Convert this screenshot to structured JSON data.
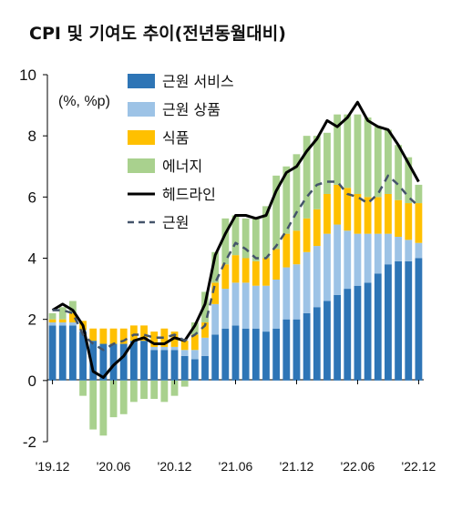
{
  "chart_data": {
    "type": "bar",
    "title": "CPI 및 기여도 추이(전년동월대비)",
    "unit_label": "(%, %p)",
    "ylim": [
      -2,
      10
    ],
    "yticks": [
      -2,
      0,
      2,
      4,
      6,
      8,
      10
    ],
    "x_tick_labels": [
      "'19.12",
      "'20.06",
      "'20.12",
      "'21.06",
      "'21.12",
      "'22.06",
      "'22.12"
    ],
    "legend_position": "top-center",
    "colors": {
      "services": "#2e75b6",
      "goods": "#9dc3e6",
      "food": "#ffc000",
      "energy": "#a9d18e",
      "headline": "#000000",
      "core": "#44546a"
    },
    "categories": [
      "2019-12",
      "2020-01",
      "2020-02",
      "2020-03",
      "2020-04",
      "2020-05",
      "2020-06",
      "2020-07",
      "2020-08",
      "2020-09",
      "2020-10",
      "2020-11",
      "2020-12",
      "2021-01",
      "2021-02",
      "2021-03",
      "2021-04",
      "2021-05",
      "2021-06",
      "2021-07",
      "2021-08",
      "2021-09",
      "2021-10",
      "2021-11",
      "2021-12",
      "2022-01",
      "2022-02",
      "2022-03",
      "2022-04",
      "2022-05",
      "2022-06",
      "2022-07",
      "2022-08",
      "2022-09",
      "2022-10",
      "2022-11",
      "2022-12"
    ],
    "series": [
      {
        "name": "근원 서비스",
        "kind": "bar",
        "values": [
          1.8,
          1.8,
          1.8,
          1.6,
          1.3,
          1.2,
          1.2,
          1.2,
          1.3,
          1.3,
          1.0,
          1.0,
          1.0,
          0.8,
          0.7,
          0.8,
          1.5,
          1.7,
          1.8,
          1.7,
          1.7,
          1.6,
          1.7,
          2.0,
          2.0,
          2.2,
          2.4,
          2.6,
          2.8,
          3.0,
          3.1,
          3.2,
          3.5,
          3.8,
          3.9,
          3.9,
          4.0
        ]
      },
      {
        "name": "근원 상품",
        "kind": "bar",
        "values": [
          0.1,
          0.1,
          0.1,
          0.05,
          0.0,
          0.0,
          0.0,
          0.0,
          0.0,
          0.0,
          0.1,
          0.1,
          0.1,
          0.2,
          0.3,
          0.6,
          1.0,
          1.3,
          1.4,
          1.5,
          1.4,
          1.5,
          1.6,
          1.7,
          1.8,
          2.0,
          2.0,
          2.2,
          2.3,
          1.9,
          1.7,
          1.6,
          1.3,
          1.0,
          0.8,
          0.7,
          0.5
        ]
      },
      {
        "name": "식품",
        "kind": "bar",
        "values": [
          0.1,
          0.1,
          0.3,
          0.3,
          0.4,
          0.5,
          0.5,
          0.5,
          0.5,
          0.5,
          0.5,
          0.6,
          0.5,
          0.3,
          0.5,
          0.5,
          0.7,
          0.8,
          0.9,
          0.8,
          0.8,
          0.9,
          1.0,
          1.1,
          1.1,
          1.1,
          1.2,
          1.3,
          1.3,
          1.4,
          1.3,
          1.2,
          1.2,
          1.3,
          1.2,
          1.2,
          1.3
        ]
      },
      {
        "name": "에너지",
        "kind": "bar",
        "values": [
          0.2,
          0.4,
          0.4,
          -0.5,
          -1.6,
          -1.8,
          -1.2,
          -1.1,
          -0.7,
          -0.6,
          -0.6,
          -0.7,
          -0.5,
          -0.2,
          0.4,
          1.0,
          1.0,
          1.5,
          1.3,
          1.3,
          1.4,
          1.7,
          2.4,
          2.2,
          2.5,
          2.7,
          2.4,
          2.0,
          2.3,
          2.4,
          2.6,
          2.6,
          2.3,
          2.1,
          1.8,
          1.5,
          0.6
        ]
      },
      {
        "name": "헤드라인",
        "kind": "line",
        "values": [
          2.3,
          2.5,
          2.3,
          1.8,
          0.3,
          0.1,
          0.5,
          0.8,
          1.3,
          1.4,
          1.2,
          1.2,
          1.4,
          1.3,
          1.8,
          2.5,
          4.1,
          4.8,
          5.4,
          5.4,
          5.3,
          5.4,
          6.2,
          6.8,
          7.0,
          7.5,
          7.9,
          8.5,
          8.3,
          8.6,
          9.1,
          8.5,
          8.3,
          8.2,
          7.7,
          7.1,
          6.5
        ]
      },
      {
        "name": "근원",
        "kind": "dashed-line",
        "values": [
          2.3,
          2.3,
          2.2,
          1.5,
          1.2,
          1.0,
          1.2,
          1.3,
          1.5,
          1.5,
          1.4,
          1.4,
          1.5,
          1.3,
          1.5,
          1.8,
          3.2,
          3.9,
          4.5,
          4.3,
          4.0,
          4.0,
          4.4,
          4.9,
          5.5,
          6.0,
          6.4,
          6.5,
          6.5,
          6.1,
          6.0,
          5.8,
          6.1,
          6.7,
          6.4,
          6.0,
          5.7
        ]
      }
    ]
  }
}
